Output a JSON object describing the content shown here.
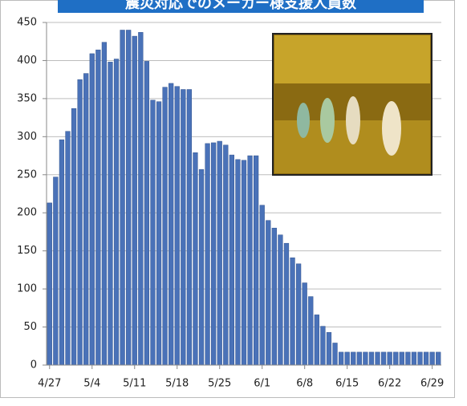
{
  "chart_data": {
    "type": "bar",
    "title": "震災対応でのメーカー様支援人員数",
    "categories": [
      "4/27",
      null,
      null,
      null,
      null,
      null,
      null,
      "5/4",
      null,
      null,
      null,
      null,
      null,
      null,
      "5/11",
      null,
      null,
      null,
      null,
      null,
      null,
      "5/18",
      null,
      null,
      null,
      null,
      null,
      null,
      "5/25",
      null,
      null,
      null,
      null,
      null,
      null,
      "6/1",
      null,
      null,
      null,
      null,
      null,
      null,
      "6/8",
      null,
      null,
      null,
      null,
      null,
      null,
      "6/15",
      null,
      null,
      null,
      null,
      null,
      null,
      "6/22",
      null,
      null,
      null,
      null,
      null,
      null,
      "6/29",
      null
    ],
    "values": [
      213,
      247,
      296,
      307,
      337,
      375,
      383,
      409,
      414,
      424,
      398,
      402,
      440,
      440,
      432,
      437,
      399,
      348,
      346,
      365,
      370,
      366,
      362,
      362,
      279,
      257,
      291,
      292,
      294,
      289,
      276,
      270,
      269,
      275,
      275,
      210,
      190,
      180,
      171,
      160,
      141,
      133,
      108,
      90,
      66,
      51,
      43,
      29,
      17,
      17,
      17,
      17,
      17,
      17,
      17,
      17,
      17,
      17,
      17,
      17,
      17,
      17,
      17,
      17,
      17
    ],
    "color": "#4a72b8",
    "ylim": [
      0,
      450
    ],
    "yticks": [
      0,
      50,
      100,
      150,
      200,
      250,
      300,
      350,
      400,
      450
    ],
    "grid": true
  }
}
